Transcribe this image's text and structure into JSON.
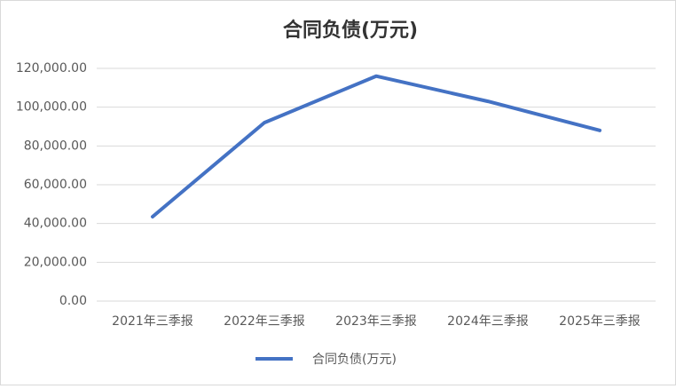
{
  "chart_data": {
    "type": "line",
    "title": "合同负债(万元)",
    "categories": [
      "2021年三季报",
      "2022年三季报",
      "2023年三季报",
      "2024年三季报",
      "2025年三季报"
    ],
    "series": [
      {
        "name": "合同负债(万元)",
        "color": "#4472c4",
        "values": [
          43500,
          92000,
          116000,
          103000,
          88000
        ]
      }
    ],
    "ylim": [
      0,
      120000
    ],
    "yticks": [
      {
        "value": 0,
        "label": "0.00"
      },
      {
        "value": 20000,
        "label": "20,000.00"
      },
      {
        "value": 40000,
        "label": "40,000.00"
      },
      {
        "value": 60000,
        "label": "60,000.00"
      },
      {
        "value": 80000,
        "label": "80,000.00"
      },
      {
        "value": 100000,
        "label": "100,000.00"
      },
      {
        "value": 120000,
        "label": "120,000.00"
      }
    ],
    "grid": true,
    "legend": "bottom"
  }
}
